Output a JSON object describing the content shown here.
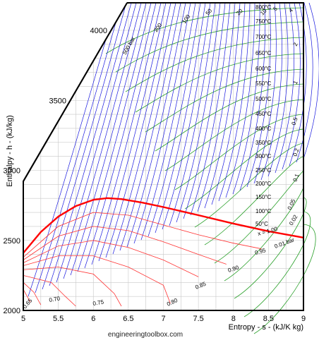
{
  "chart_data": {
    "type": "line",
    "title": "",
    "xlabel": "Entropy - s - (kJ/K kg)",
    "ylabel": "Enthalpy - h - (kJ/kg)",
    "xlim": [
      5,
      9
    ],
    "ylim": [
      2000,
      4000
    ],
    "x_ticks": [
      "5",
      "5.5",
      "6",
      "6.5",
      "7",
      "7.5",
      "8",
      "8.5",
      "9"
    ],
    "y_ticks": [
      "2000",
      "2500",
      "3000",
      "3500",
      "4000"
    ],
    "grid": true,
    "footer": "engineeringtoolbox.com",
    "colors": {
      "saturation_line": "#ff0000",
      "quality_lines": "#ff3333",
      "isobars": "#1a1adf",
      "isotherms": "#2aa02a",
      "grid": "#c8c8c8",
      "frame": "#000000"
    },
    "saturation_line": [
      {
        "s": 5.0,
        "h": 2410
      },
      {
        "s": 5.25,
        "h": 2560
      },
      {
        "s": 5.5,
        "h": 2670
      },
      {
        "s": 5.75,
        "h": 2745
      },
      {
        "s": 6.0,
        "h": 2790
      },
      {
        "s": 6.2,
        "h": 2802
      },
      {
        "s": 6.4,
        "h": 2795
      },
      {
        "s": 6.7,
        "h": 2770
      },
      {
        "s": 7.0,
        "h": 2738
      },
      {
        "s": 7.5,
        "h": 2680
      },
      {
        "s": 8.0,
        "h": 2620
      },
      {
        "s": 8.5,
        "h": 2565
      },
      {
        "s": 9.0,
        "h": 2520
      }
    ],
    "quality_lines": [
      {
        "label": "0.95",
        "points": [
          {
            "s": 5.0,
            "h": 2380
          },
          {
            "s": 5.5,
            "h": 2600
          },
          {
            "s": 6.0,
            "h": 2700
          },
          {
            "s": 6.5,
            "h": 2680
          },
          {
            "s": 7.0,
            "h": 2610
          },
          {
            "s": 7.5,
            "h": 2540
          },
          {
            "s": 8.0,
            "h": 2480
          },
          {
            "s": 8.4,
            "h": 2440
          }
        ]
      },
      {
        "label": "0.90",
        "points": [
          {
            "s": 5.0,
            "h": 2360
          },
          {
            "s": 5.5,
            "h": 2530
          },
          {
            "s": 6.0,
            "h": 2600
          },
          {
            "s": 6.5,
            "h": 2570
          },
          {
            "s": 7.0,
            "h": 2490
          },
          {
            "s": 7.5,
            "h": 2400
          },
          {
            "s": 7.9,
            "h": 2330
          }
        ]
      },
      {
        "label": "0.85",
        "points": [
          {
            "s": 5.0,
            "h": 2340
          },
          {
            "s": 5.5,
            "h": 2460
          },
          {
            "s": 6.0,
            "h": 2500
          },
          {
            "s": 6.5,
            "h": 2450
          },
          {
            "s": 7.0,
            "h": 2360
          },
          {
            "s": 7.5,
            "h": 2240
          }
        ]
      },
      {
        "label": "0.80",
        "points": [
          {
            "s": 5.0,
            "h": 2320
          },
          {
            "s": 5.5,
            "h": 2390
          },
          {
            "s": 6.0,
            "h": 2390
          },
          {
            "s": 6.5,
            "h": 2310
          },
          {
            "s": 7.0,
            "h": 2180
          },
          {
            "s": 7.1,
            "h": 2050
          }
        ]
      },
      {
        "label": "0.75",
        "points": [
          {
            "s": 5.0,
            "h": 2290
          },
          {
            "s": 5.5,
            "h": 2310
          },
          {
            "s": 6.0,
            "h": 2260
          },
          {
            "s": 6.3,
            "h": 2120
          },
          {
            "s": 6.4,
            "h": 2030
          }
        ]
      },
      {
        "label": "0.70",
        "points": [
          {
            "s": 5.0,
            "h": 2250
          },
          {
            "s": 5.4,
            "h": 2200
          },
          {
            "s": 5.6,
            "h": 2100
          },
          {
            "s": 5.75,
            "h": 2030
          }
        ]
      },
      {
        "label": "0.65",
        "points": [
          {
            "s": 5.0,
            "h": 2200
          },
          {
            "s": 5.15,
            "h": 2130
          },
          {
            "s": 5.25,
            "h": 2040
          }
        ]
      },
      {
        "label": "",
        "points": [
          {
            "s": 5.0,
            "h": 2150
          },
          {
            "s": 5.1,
            "h": 2060
          }
        ]
      }
    ],
    "isobar_labels": [
      "500 bar",
      "200",
      "100",
      "50",
      "20",
      "10",
      "5",
      "4",
      "2",
      "1",
      "0.5",
      "0.2",
      "0.1",
      "0.05",
      "0.02",
      "0.01 bar"
    ],
    "isotherm_labels": [
      "800°C",
      "750°C",
      "700°C",
      "650°C",
      "600°C",
      "550°C",
      "500°C",
      "450°C",
      "400°C",
      "350°C",
      "300°C",
      "250°C",
      "200°C",
      "150°C",
      "100°C",
      "50°C"
    ],
    "quality_labels": [
      "x = 1.00",
      "0.95",
      "0.90",
      "0.85",
      "0.80",
      "0.75",
      "0.70",
      "0.65"
    ]
  }
}
